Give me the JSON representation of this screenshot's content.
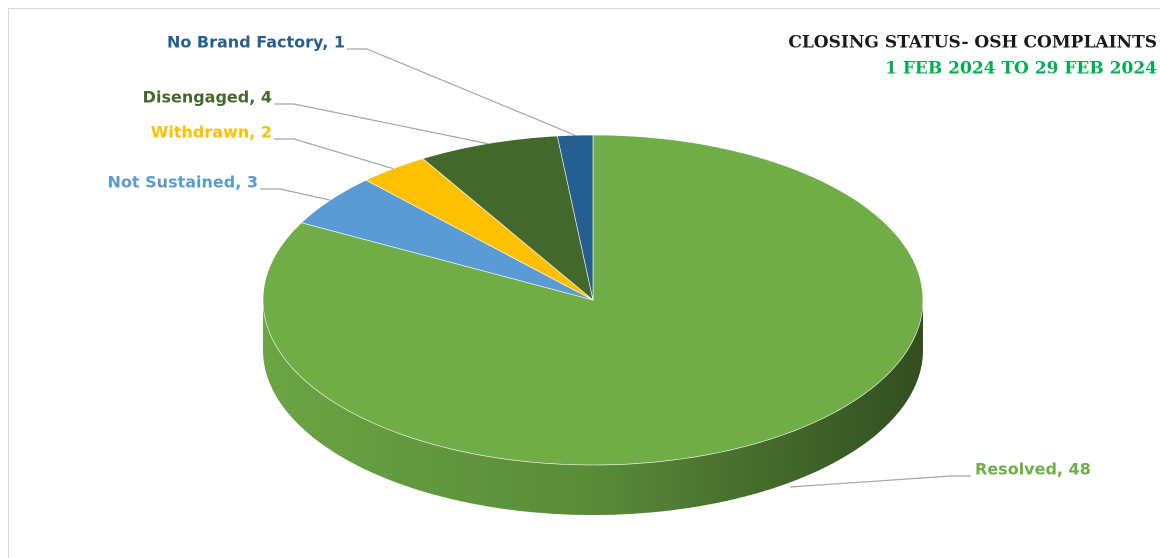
{
  "chart_data": {
    "type": "pie3d",
    "title": "CLOSING STATUS- OSH COMPLAINTS",
    "subtitle": "1 FEB 2024 TO 29 FEB 2024",
    "categories": [
      "Resolved",
      "Not Sustained",
      "Withdrawn",
      "Disengaged",
      "No Brand Factory"
    ],
    "values": [
      48,
      3,
      2,
      4,
      1
    ],
    "value_labels": [
      "Resolved, 48",
      "Not Sustained, 3",
      "Withdrawn, 2",
      "Disengaged, 4",
      "No Brand Factory, 1"
    ],
    "colors": [
      "#70ad47",
      "#5b9bd5",
      "#ffc000",
      "#43682b",
      "#255e91"
    ],
    "label_colors": [
      "#70ad47",
      "#5b9bd5",
      "#ffc000",
      "#43682b",
      "#255e91"
    ]
  }
}
